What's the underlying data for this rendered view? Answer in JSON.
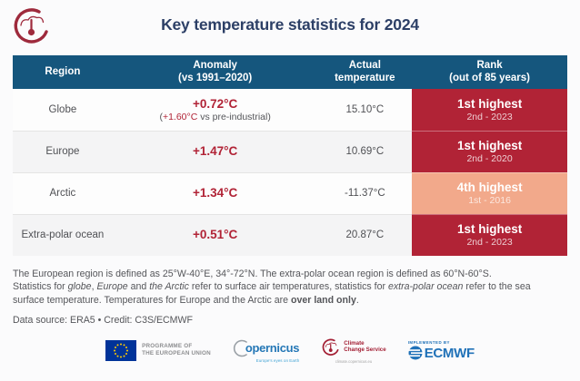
{
  "page": {
    "title": "Key temperature statistics for 2024"
  },
  "colors": {
    "header_blue": "#15567D",
    "dark_red": "#B12336",
    "orange": "#F2A98B",
    "navy": "#2C3F66",
    "c3s_red": "#A31F34",
    "ecmwf_blue": "#2172B8",
    "eu_blue": "#003399",
    "star_yellow": "#FFCC00"
  },
  "table": {
    "columns": [
      {
        "line1": "Region",
        "line2": ""
      },
      {
        "line1": "Anomaly",
        "line2": "(vs 1991–2020)"
      },
      {
        "line1": "Actual",
        "line2": "temperature"
      },
      {
        "line1": "Rank",
        "line2": "(out of 85 years)"
      }
    ],
    "rows": [
      {
        "region": "Globe",
        "anomaly": "+0.72°C",
        "note_pre": "(",
        "note_highlight": "+1.60°C",
        "note_post": " vs pre-industrial)",
        "actual": "15.10°C",
        "rank": "1st highest",
        "rank_sub": "2nd - 2023",
        "rank_style": "dark-red"
      },
      {
        "region": "Europe",
        "anomaly": "+1.47°C",
        "actual": "10.69°C",
        "rank": "1st highest",
        "rank_sub": "2nd - 2020",
        "rank_style": "dark-red"
      },
      {
        "region": "Arctic",
        "anomaly": "+1.34°C",
        "actual": "-11.37°C",
        "rank": "4th highest",
        "rank_sub": "1st - 2016",
        "rank_style": "orange"
      },
      {
        "region": "Extra-polar ocean",
        "anomaly": "+0.51°C",
        "actual": "20.87°C",
        "rank": "1st highest",
        "rank_sub": "2nd - 2023",
        "rank_style": "dark-red"
      }
    ]
  },
  "footnotes": [
    [
      {
        "t": "The European region is defined as 25°W-40°E, 34°-72°N. The extra-polar ocean region is defined as 60°N-60°S.",
        "s": "n"
      }
    ],
    [
      {
        "t": "Statistics for ",
        "s": "n"
      },
      {
        "t": "globe",
        "s": "i"
      },
      {
        "t": ", ",
        "s": "n"
      },
      {
        "t": "Europe",
        "s": "i"
      },
      {
        "t": " and ",
        "s": "n"
      },
      {
        "t": "the Arctic",
        "s": "i"
      },
      {
        "t": " refer to surface air temperatures, statistics for ",
        "s": "n"
      },
      {
        "t": "extra-polar ocean",
        "s": "i"
      },
      {
        "t": " refer to the sea surface temperature. Temperatures for Europe and the Arctic are ",
        "s": "n"
      },
      {
        "t": "over land only",
        "s": "b"
      },
      {
        "t": ".",
        "s": "n"
      }
    ]
  ],
  "footer": {
    "data_source": "Data source: ERA5 • Credit: C3S/ECMWF",
    "eu_logo": {
      "line1": "PROGRAMME OF",
      "line2": "THE EUROPEAN UNION"
    },
    "copernicus_logo": {
      "name": "opernicus",
      "tagline": "Europe's eyes on Earth"
    },
    "c3s_logo": {
      "line1": "Climate",
      "line2": "Change Service",
      "tagline": "climate.copernicus.eu"
    },
    "ecmwf_logo": {
      "implemented_by": "IMPLEMENTED BY",
      "name": "ECMWF"
    }
  },
  "chart_data": {
    "type": "table",
    "title": "Key temperature statistics for 2024",
    "columns": [
      "Region",
      "Anomaly (vs 1991–2020)",
      "Actual temperature",
      "Rank (out of 85 years)"
    ],
    "rows": [
      [
        "Globe",
        "+0.72°C (+1.60°C vs pre-industrial)",
        "15.10°C",
        "1st highest (2nd - 2023)"
      ],
      [
        "Europe",
        "+1.47°C",
        "10.69°C",
        "1st highest (2nd - 2020)"
      ],
      [
        "Arctic",
        "+1.34°C",
        "-11.37°C",
        "4th highest (1st - 2016)"
      ],
      [
        "Extra-polar ocean",
        "+0.51°C",
        "20.87°C",
        "1st highest (2nd - 2023)"
      ]
    ],
    "notes": "Temperatures for Europe and the Arctic are over land only; extra-polar ocean uses sea surface temperature."
  }
}
